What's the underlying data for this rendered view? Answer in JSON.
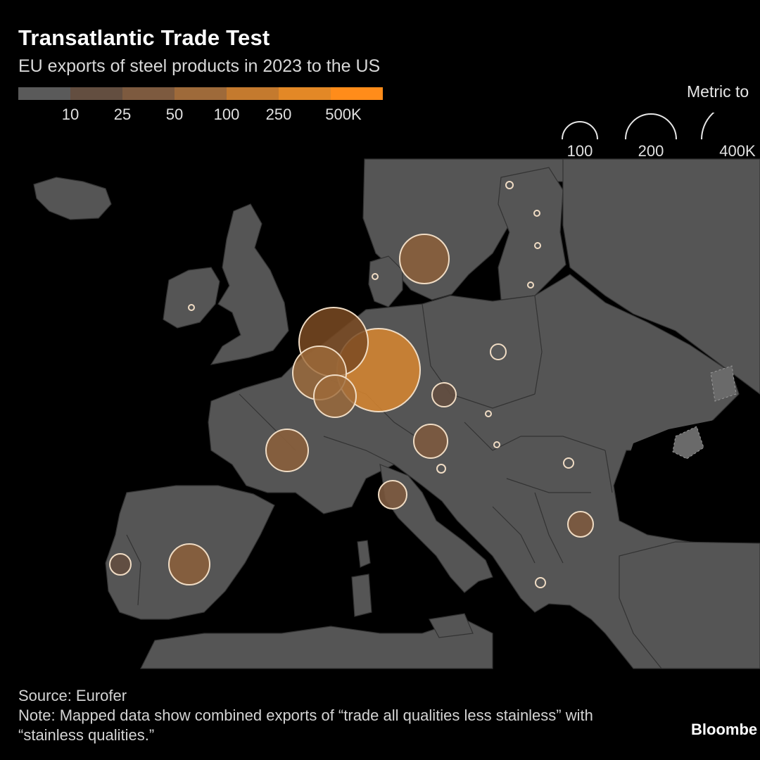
{
  "header": {
    "title": "Transatlantic Trade Test",
    "subtitle": "EU exports of steel products in 2023 to the US"
  },
  "color_scale": {
    "colors": [
      "#5a5a5a",
      "#634e40",
      "#7d5a3f",
      "#9e6a3a",
      "#c47a2e",
      "#e38826",
      "#ff8c1a"
    ],
    "labels": [
      "10",
      "25",
      "50",
      "100",
      "250",
      "500K"
    ]
  },
  "size_legend": {
    "title": "Metric to",
    "items": [
      {
        "value": 100,
        "label": "100"
      },
      {
        "value": 200,
        "label": "200"
      },
      {
        "value": 400,
        "label": "400K"
      }
    ]
  },
  "map": {
    "land_color": "#555555",
    "border_color": "#333333",
    "water_color": "#000000",
    "bubble_stroke": "#f0dcc4"
  },
  "footer": {
    "source": "Source: Eurofer",
    "note": "Note: Mapped data show combined exports of “trade all qualities less stainless” with “stainless qualities.”",
    "brand": "Bloombe"
  }
}
